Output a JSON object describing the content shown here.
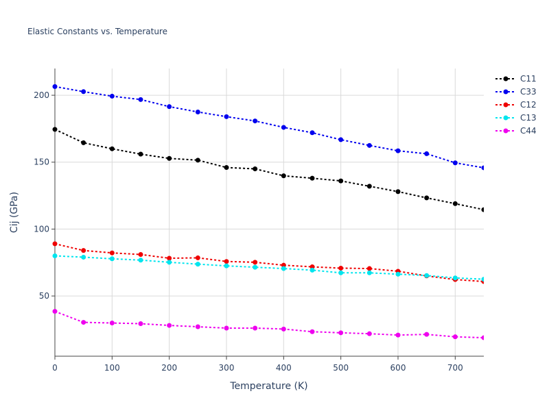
{
  "chart_data": {
    "type": "line",
    "title": "Elastic Constants vs. Temperature",
    "xlabel": "Temperature (K)",
    "ylabel": "Cij (GPa)",
    "xlim": [
      0,
      750
    ],
    "ylim": [
      5,
      220
    ],
    "xticks": [
      0,
      100,
      200,
      300,
      400,
      500,
      600,
      700
    ],
    "yticks": [
      50,
      100,
      150,
      200
    ],
    "grid": true,
    "legend_position": "top-right",
    "x": [
      0,
      50,
      100,
      150,
      200,
      250,
      300,
      350,
      400,
      450,
      500,
      550,
      600,
      650,
      700,
      750
    ],
    "series": [
      {
        "name": "C11",
        "color": "#000000",
        "values": [
          174.5,
          164.5,
          160,
          156,
          152.8,
          151.5,
          146,
          145,
          139.8,
          138,
          136,
          132,
          128,
          123.3,
          119,
          114.5
        ]
      },
      {
        "name": "C33",
        "color": "#0000ee",
        "values": [
          206.5,
          202.7,
          199.3,
          196.8,
          191.5,
          187.5,
          184,
          180.8,
          176,
          172,
          166.8,
          162.5,
          158.5,
          156.3,
          149.5,
          145.8
        ]
      },
      {
        "name": "C12",
        "color": "#ee0000",
        "values": [
          89,
          84,
          82.2,
          81,
          78.2,
          78.5,
          75.8,
          75.2,
          73,
          71.8,
          70.8,
          70.5,
          68.5,
          65,
          62.3,
          60.8
        ]
      },
      {
        "name": "C13",
        "color": "#00e5ee",
        "values": [
          80,
          79,
          77.8,
          76.8,
          75.2,
          73.8,
          72.5,
          71.5,
          70.5,
          69.3,
          67.3,
          67.3,
          66.3,
          65.3,
          63.5,
          62.5
        ]
      },
      {
        "name": "C44",
        "color": "#ee00ee",
        "values": [
          38.5,
          30.3,
          29.8,
          29.3,
          28,
          27,
          26,
          26,
          25.3,
          23.3,
          22.5,
          21.8,
          20.8,
          21.3,
          19.5,
          18.8
        ]
      }
    ]
  }
}
